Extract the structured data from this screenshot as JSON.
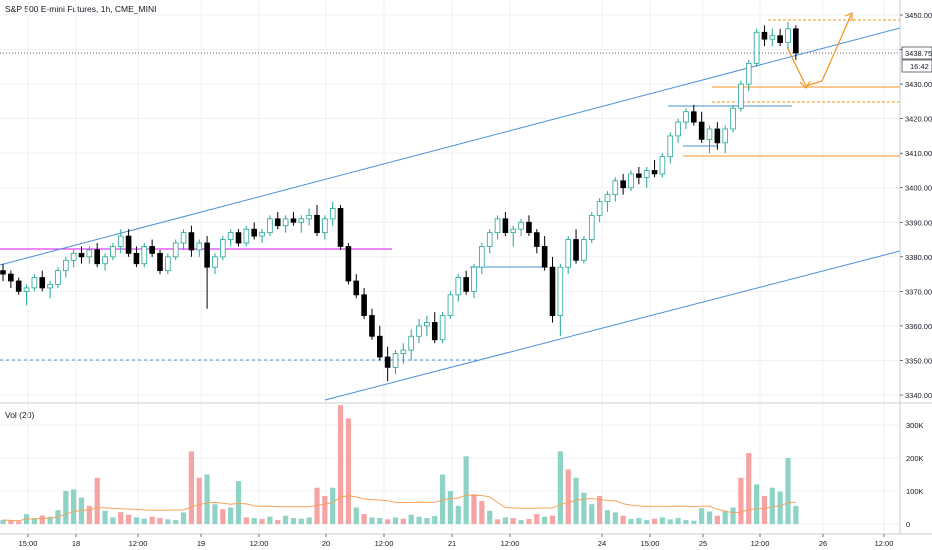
{
  "header": {
    "title": "S&P 500 E-mini Futures, 1h, CME_MINI"
  },
  "volume_panel": {
    "title": "Vol (20)"
  },
  "colors": {
    "up": "#26a69a",
    "down": "#000000",
    "up_body": "#ffffff",
    "vol_up": "#8fd3c7",
    "vol_down": "#f5a3a3",
    "vol_ma": "#f6a25a",
    "channel": "#4a90d9",
    "support": "#4a90d9",
    "magenta": "#e040fb",
    "orange": "#f7931e",
    "grid": "#eef0f3",
    "axis": "#131722"
  },
  "chart_data": [
    {
      "type": "candlestick",
      "title": "S&P 500 E-mini Futures, 1h, CME_MINI",
      "y_axis": {
        "range": [
          3338,
          3453
        ],
        "ticks": [
          "3340.00",
          "3350.00",
          "3360.00",
          "3370.00",
          "3380.00",
          "3390.00",
          "3400.00",
          "3410.00",
          "3420.00",
          "3430.00",
          "3440.00",
          "3450.00"
        ]
      },
      "x_axis": {
        "ticks": [
          "15:00",
          "18",
          "12:00",
          "19",
          "12:00",
          "20",
          "12:00",
          "21",
          "12:00",
          "24",
          "15:00",
          "25",
          "12:00",
          "26",
          "12:00"
        ]
      },
      "last_price": {
        "value": "3438.75",
        "countdown": "16:42"
      },
      "candles": [
        [
          3376,
          3378,
          3373,
          3375
        ],
        [
          3375,
          3376,
          3371,
          3373
        ],
        [
          3373,
          3374,
          3369,
          3370
        ],
        [
          3370,
          3372,
          3366,
          3371
        ],
        [
          3371,
          3375,
          3370,
          3374
        ],
        [
          3374,
          3376,
          3370,
          3371
        ],
        [
          3371,
          3373,
          3368,
          3372
        ],
        [
          3372,
          3377,
          3371,
          3376
        ],
        [
          3376,
          3380,
          3374,
          3379
        ],
        [
          3379,
          3382,
          3377,
          3381
        ],
        [
          3381,
          3383,
          3378,
          3380
        ],
        [
          3380,
          3383,
          3378,
          3382
        ],
        [
          3382,
          3384,
          3377,
          3378
        ],
        [
          3378,
          3381,
          3376,
          3380
        ],
        [
          3380,
          3384,
          3379,
          3383
        ],
        [
          3383,
          3388,
          3381,
          3386
        ],
        [
          3386,
          3388,
          3380,
          3381
        ],
        [
          3381,
          3383,
          3377,
          3378
        ],
        [
          3378,
          3384,
          3377,
          3383
        ],
        [
          3383,
          3385,
          3380,
          3381
        ],
        [
          3381,
          3382,
          3375,
          3376
        ],
        [
          3376,
          3381,
          3375,
          3380
        ],
        [
          3380,
          3385,
          3379,
          3384
        ],
        [
          3384,
          3388,
          3382,
          3387
        ],
        [
          3387,
          3389,
          3380,
          3382
        ],
        [
          3382,
          3385,
          3380,
          3384
        ],
        [
          3384,
          3386,
          3365,
          3377
        ],
        [
          3377,
          3381,
          3375,
          3380
        ],
        [
          3380,
          3386,
          3379,
          3385
        ],
        [
          3385,
          3388,
          3383,
          3387
        ],
        [
          3387,
          3388,
          3383,
          3384
        ],
        [
          3384,
          3389,
          3383,
          3388
        ],
        [
          3388,
          3390,
          3385,
          3386
        ],
        [
          3386,
          3388,
          3384,
          3387
        ],
        [
          3387,
          3392,
          3386,
          3391
        ],
        [
          3391,
          3393,
          3388,
          3389
        ],
        [
          3389,
          3392,
          3387,
          3391
        ],
        [
          3391,
          3393,
          3389,
          3390
        ],
        [
          3390,
          3392,
          3387,
          3391
        ],
        [
          3391,
          3394,
          3389,
          3392
        ],
        [
          3392,
          3395,
          3386,
          3387
        ],
        [
          3387,
          3392,
          3385,
          3391
        ],
        [
          3391,
          3396,
          3389,
          3394
        ],
        [
          3394,
          3395,
          3382,
          3383
        ],
        [
          3383,
          3384,
          3372,
          3373
        ],
        [
          3373,
          3375,
          3368,
          3369
        ],
        [
          3369,
          3371,
          3362,
          3363
        ],
        [
          3363,
          3365,
          3356,
          3357
        ],
        [
          3357,
          3360,
          3350,
          3351
        ],
        [
          3351,
          3354,
          3344,
          3348
        ],
        [
          3348,
          3353,
          3346,
          3352
        ],
        [
          3352,
          3355,
          3349,
          3353
        ],
        [
          3353,
          3359,
          3350,
          3357
        ],
        [
          3357,
          3362,
          3355,
          3360
        ],
        [
          3360,
          3363,
          3357,
          3361
        ],
        [
          3361,
          3364,
          3355,
          3356
        ],
        [
          3356,
          3364,
          3355,
          3363
        ],
        [
          3363,
          3370,
          3362,
          3369
        ],
        [
          3369,
          3375,
          3367,
          3374
        ],
        [
          3374,
          3376,
          3369,
          3370
        ],
        [
          3370,
          3378,
          3368,
          3377
        ],
        [
          3377,
          3384,
          3375,
          3383
        ],
        [
          3383,
          3388,
          3381,
          3387
        ],
        [
          3387,
          3392,
          3385,
          3391
        ],
        [
          3391,
          3393,
          3386,
          3387
        ],
        [
          3387,
          3389,
          3383,
          3388
        ],
        [
          3388,
          3391,
          3386,
          3390
        ],
        [
          3390,
          3392,
          3386,
          3387
        ],
        [
          3387,
          3388,
          3381,
          3383
        ],
        [
          3383,
          3386,
          3376,
          3377
        ],
        [
          3377,
          3380,
          3361,
          3363
        ],
        [
          3363,
          3378,
          3357,
          3377
        ],
        [
          3377,
          3386,
          3375,
          3385
        ],
        [
          3385,
          3388,
          3378,
          3379
        ],
        [
          3379,
          3386,
          3378,
          3385
        ],
        [
          3385,
          3393,
          3384,
          3392
        ],
        [
          3392,
          3397,
          3390,
          3396
        ],
        [
          3396,
          3399,
          3393,
          3398
        ],
        [
          3398,
          3403,
          3396,
          3402
        ],
        [
          3402,
          3404,
          3398,
          3400
        ],
        [
          3400,
          3405,
          3399,
          3404
        ],
        [
          3404,
          3406,
          3401,
          3403
        ],
        [
          3403,
          3406,
          3400,
          3405
        ],
        [
          3405,
          3408,
          3403,
          3404
        ],
        [
          3404,
          3410,
          3403,
          3409
        ],
        [
          3409,
          3416,
          3407,
          3415
        ],
        [
          3415,
          3420,
          3413,
          3419
        ],
        [
          3419,
          3423,
          3417,
          3422
        ],
        [
          3422,
          3424,
          3418,
          3419
        ],
        [
          3419,
          3422,
          3413,
          3414
        ],
        [
          3414,
          3418,
          3410,
          3417
        ],
        [
          3417,
          3419,
          3411,
          3413
        ],
        [
          3413,
          3418,
          3410,
          3417
        ],
        [
          3417,
          3424,
          3416,
          3423
        ],
        [
          3423,
          3431,
          3422,
          3430
        ],
        [
          3430,
          3437,
          3428,
          3436
        ],
        [
          3436,
          3446,
          3435,
          3445
        ],
        [
          3445,
          3447,
          3441,
          3443
        ],
        [
          3443,
          3446,
          3441,
          3444
        ],
        [
          3444,
          3446,
          3441,
          3442
        ],
        [
          3442,
          3448,
          3440,
          3446
        ],
        [
          3446,
          3447,
          3437,
          3439
        ]
      ]
    },
    {
      "type": "bar",
      "title": "Vol (20)",
      "y_axis": {
        "ticks": [
          "300K",
          "200K",
          "100K",
          "0"
        ]
      },
      "volumes": [
        [
          12,
          1
        ],
        [
          10,
          0
        ],
        [
          8,
          0
        ],
        [
          30,
          1
        ],
        [
          18,
          1
        ],
        [
          26,
          0
        ],
        [
          22,
          1
        ],
        [
          42,
          1
        ],
        [
          100,
          1
        ],
        [
          105,
          1
        ],
        [
          80,
          1
        ],
        [
          55,
          0
        ],
        [
          140,
          0
        ],
        [
          40,
          1
        ],
        [
          20,
          1
        ],
        [
          36,
          0
        ],
        [
          28,
          0
        ],
        [
          20,
          1
        ],
        [
          16,
          1
        ],
        [
          22,
          0
        ],
        [
          18,
          0
        ],
        [
          14,
          1
        ],
        [
          12,
          1
        ],
        [
          35,
          1
        ],
        [
          220,
          0
        ],
        [
          140,
          0
        ],
        [
          150,
          1
        ],
        [
          60,
          1
        ],
        [
          45,
          0
        ],
        [
          50,
          1
        ],
        [
          130,
          1
        ],
        [
          20,
          0
        ],
        [
          18,
          1
        ],
        [
          15,
          0
        ],
        [
          22,
          1
        ],
        [
          12,
          0
        ],
        [
          25,
          1
        ],
        [
          18,
          1
        ],
        [
          16,
          1
        ],
        [
          20,
          1
        ],
        [
          110,
          0
        ],
        [
          85,
          0
        ],
        [
          110,
          1
        ],
        [
          360,
          0
        ],
        [
          320,
          0
        ],
        [
          50,
          1
        ],
        [
          30,
          0
        ],
        [
          20,
          1
        ],
        [
          18,
          1
        ],
        [
          14,
          0
        ],
        [
          20,
          1
        ],
        [
          16,
          0
        ],
        [
          28,
          1
        ],
        [
          22,
          1
        ],
        [
          18,
          1
        ],
        [
          24,
          1
        ],
        [
          150,
          1
        ],
        [
          100,
          1
        ],
        [
          55,
          1
        ],
        [
          205,
          1
        ],
        [
          90,
          0
        ],
        [
          70,
          0
        ],
        [
          40,
          1
        ],
        [
          14,
          0
        ],
        [
          20,
          1
        ],
        [
          18,
          0
        ],
        [
          12,
          1
        ],
        [
          15,
          0
        ],
        [
          30,
          0
        ],
        [
          22,
          1
        ],
        [
          25,
          0
        ],
        [
          220,
          1
        ],
        [
          165,
          0
        ],
        [
          140,
          1
        ],
        [
          95,
          1
        ],
        [
          60,
          1
        ],
        [
          85,
          0
        ],
        [
          42,
          1
        ],
        [
          35,
          1
        ],
        [
          25,
          0
        ],
        [
          15,
          1
        ],
        [
          18,
          1
        ],
        [
          12,
          1
        ],
        [
          16,
          0
        ],
        [
          20,
          1
        ],
        [
          14,
          1
        ],
        [
          18,
          1
        ],
        [
          12,
          1
        ],
        [
          10,
          1
        ],
        [
          48,
          1
        ],
        [
          38,
          1
        ],
        [
          25,
          0
        ],
        [
          40,
          1
        ],
        [
          50,
          1
        ],
        [
          140,
          0
        ],
        [
          215,
          0
        ],
        [
          120,
          1
        ],
        [
          85,
          0
        ],
        [
          110,
          1
        ],
        [
          98,
          1
        ],
        [
          200,
          1
        ],
        [
          55,
          1
        ]
      ]
    }
  ]
}
